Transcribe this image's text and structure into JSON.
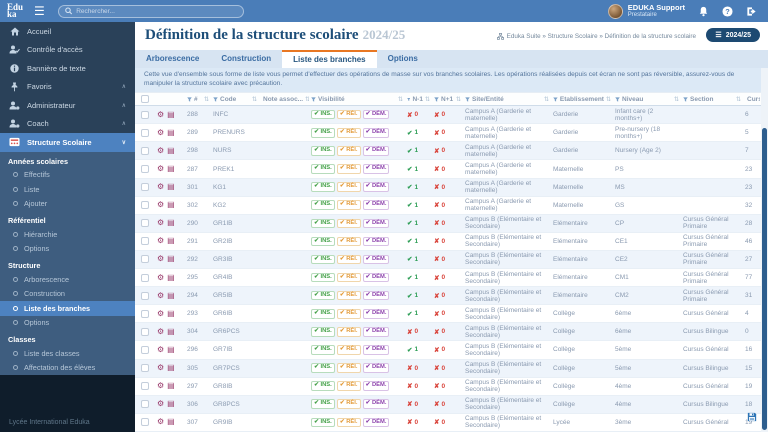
{
  "topbar": {
    "logo_line1": "Edu",
    "logo_line2": "ka",
    "search_placeholder": "Rechercher...",
    "user_name": "EDUKA Support",
    "user_role": "Prestataire"
  },
  "sidebar": {
    "items": [
      {
        "label": "Accueil",
        "icon": "home"
      },
      {
        "label": "Contrôle d'accès",
        "icon": "user-check"
      },
      {
        "label": "Bannière de texte",
        "icon": "info"
      },
      {
        "label": "Favoris",
        "icon": "pin",
        "chevron": "up"
      },
      {
        "label": "Administrateur",
        "icon": "user-admin",
        "chevron": "up"
      },
      {
        "label": "Coach",
        "icon": "user-coach",
        "chevron": "up"
      },
      {
        "label": "Structure Scolaire",
        "icon": "structure",
        "chevron": "down",
        "active": true
      }
    ],
    "sections": [
      {
        "title": "Années scolaires",
        "items": [
          "Effectifs",
          "Liste",
          "Ajouter"
        ]
      },
      {
        "title": "Référentiel",
        "items": [
          "Hiérarchie",
          "Options"
        ]
      },
      {
        "title": "Structure",
        "items": [
          "Arborescence",
          "Construction",
          "Liste des branches",
          "Options"
        ],
        "active_item": "Liste des branches"
      },
      {
        "title": "Classes",
        "items": [
          "Liste des classes",
          "Affectation des élèves"
        ]
      }
    ],
    "footer": "Lycée International Eduka"
  },
  "page": {
    "title": "Définition de la structure scolaire",
    "title_year": "2024/25",
    "breadcrumb": "Eduka Suite » Structure Scolaire » Définition de la structure scolaire",
    "year_button": "2024/25",
    "tabs": [
      "Arborescence",
      "Construction",
      "Liste des branches",
      "Options"
    ],
    "active_tab": "Liste des branches",
    "info_text": "Cette vue d'ensemble sous forme de liste vous permet d'effectuer des opérations de masse sur vos branches scolaires. Les opérations réalisées depuis cet écran ne sont pas réversible, assurez-vous de manipuler la structure scolaire avec précaution."
  },
  "table": {
    "headers": [
      "#",
      "Code",
      "Note assoc...",
      "Visibilité",
      "N-1",
      "N+1",
      "Site/Entité",
      "Etablissement",
      "Niveau",
      "Section",
      "Cursus élèves"
    ],
    "visibility_badges": [
      "INS.",
      "RÉI.",
      "DÉM."
    ],
    "rows": [
      {
        "id": "288",
        "code": "INFC",
        "note": "",
        "n1": "0",
        "n1_ok": false,
        "n2": "0",
        "n2_ok": false,
        "site": "Campus A (Garderie et maternelle)",
        "etablissement": "Garderie",
        "niveau": "Infant care (2 months+)",
        "section": "",
        "cursus": "6"
      },
      {
        "id": "289",
        "code": "PRENURS",
        "note": "",
        "n1": "1",
        "n1_ok": true,
        "n2": "0",
        "n2_ok": false,
        "site": "Campus A (Garderie et maternelle)",
        "etablissement": "Garderie",
        "niveau": "Pre-nursery (18 months+)",
        "section": "",
        "cursus": "5"
      },
      {
        "id": "298",
        "code": "NURS",
        "note": "",
        "n1": "1",
        "n1_ok": true,
        "n2": "0",
        "n2_ok": false,
        "site": "Campus A (Garderie et maternelle)",
        "etablissement": "Garderie",
        "niveau": "Nursery (Age 2)",
        "section": "",
        "cursus": "7"
      },
      {
        "id": "287",
        "code": "PREK1",
        "note": "",
        "n1": "1",
        "n1_ok": true,
        "n2": "0",
        "n2_ok": false,
        "site": "Campus A (Garderie et maternelle)",
        "etablissement": "Maternelle",
        "niveau": "PS",
        "section": "",
        "cursus": "23"
      },
      {
        "id": "301",
        "code": "KG1",
        "note": "",
        "n1": "1",
        "n1_ok": true,
        "n2": "0",
        "n2_ok": false,
        "site": "Campus A (Garderie et maternelle)",
        "etablissement": "Maternelle",
        "niveau": "MS",
        "section": "",
        "cursus": "23"
      },
      {
        "id": "302",
        "code": "KG2",
        "note": "",
        "n1": "1",
        "n1_ok": true,
        "n2": "0",
        "n2_ok": false,
        "site": "Campus A (Garderie et maternelle)",
        "etablissement": "Maternelle",
        "niveau": "GS",
        "section": "",
        "cursus": "32"
      },
      {
        "id": "290",
        "code": "GR1IB",
        "note": "",
        "n1": "1",
        "n1_ok": true,
        "n2": "0",
        "n2_ok": false,
        "site": "Campus B (Elémentaire et Secondaire)",
        "etablissement": "Elémentaire",
        "niveau": "CP",
        "section": "Cursus Général Primaire",
        "cursus": "28"
      },
      {
        "id": "291",
        "code": "GR2IB",
        "note": "",
        "n1": "1",
        "n1_ok": true,
        "n2": "0",
        "n2_ok": false,
        "site": "Campus B (Elémentaire et Secondaire)",
        "etablissement": "Elémentaire",
        "niveau": "CE1",
        "section": "Cursus Général Primaire",
        "cursus": "46"
      },
      {
        "id": "292",
        "code": "GR3IB",
        "note": "",
        "n1": "1",
        "n1_ok": true,
        "n2": "0",
        "n2_ok": false,
        "site": "Campus B (Elémentaire et Secondaire)",
        "etablissement": "Elémentaire",
        "niveau": "CE2",
        "section": "Cursus Général Primaire",
        "cursus": "27"
      },
      {
        "id": "295",
        "code": "GR4IB",
        "note": "",
        "n1": "1",
        "n1_ok": true,
        "n2": "0",
        "n2_ok": false,
        "site": "Campus B (Elémentaire et Secondaire)",
        "etablissement": "Elémentaire",
        "niveau": "CM1",
        "section": "Cursus Général Primaire",
        "cursus": "77"
      },
      {
        "id": "294",
        "code": "GR5IB",
        "note": "",
        "n1": "1",
        "n1_ok": true,
        "n2": "0",
        "n2_ok": false,
        "site": "Campus B (Elémentaire et Secondaire)",
        "etablissement": "Elémentaire",
        "niveau": "CM2",
        "section": "Cursus Général Primaire",
        "cursus": "31"
      },
      {
        "id": "293",
        "code": "GR6IB",
        "note": "",
        "n1": "1",
        "n1_ok": true,
        "n2": "0",
        "n2_ok": false,
        "site": "Campus B (Elémentaire et Secondaire)",
        "etablissement": "Collège",
        "niveau": "6ème",
        "section": "Cursus Général",
        "cursus": "4"
      },
      {
        "id": "304",
        "code": "GR6PCS",
        "note": "",
        "n1": "0",
        "n1_ok": false,
        "n2": "0",
        "n2_ok": false,
        "site": "Campus B (Elémentaire et Secondaire)",
        "etablissement": "Collège",
        "niveau": "6ème",
        "section": "Cursus Bilingue",
        "cursus": "0"
      },
      {
        "id": "296",
        "code": "GR7IB",
        "note": "",
        "n1": "1",
        "n1_ok": true,
        "n2": "0",
        "n2_ok": false,
        "site": "Campus B (Elémentaire et Secondaire)",
        "etablissement": "Collège",
        "niveau": "5ème",
        "section": "Cursus Général",
        "cursus": "16"
      },
      {
        "id": "305",
        "code": "GR7PCS",
        "note": "",
        "n1": "0",
        "n1_ok": false,
        "n2": "0",
        "n2_ok": false,
        "site": "Campus B (Elémentaire et Secondaire)",
        "etablissement": "Collège",
        "niveau": "5ème",
        "section": "Cursus Bilingue",
        "cursus": "15"
      },
      {
        "id": "297",
        "code": "GR8IB",
        "note": "",
        "n1": "0",
        "n1_ok": false,
        "n2": "0",
        "n2_ok": false,
        "site": "Campus B (Elémentaire et Secondaire)",
        "etablissement": "Collège",
        "niveau": "4ème",
        "section": "Cursus Général",
        "cursus": "19"
      },
      {
        "id": "306",
        "code": "GR8PCS",
        "note": "",
        "n1": "0",
        "n1_ok": false,
        "n2": "0",
        "n2_ok": false,
        "site": "Campus B (Elémentaire et Secondaire)",
        "etablissement": "Collège",
        "niveau": "4ème",
        "section": "Cursus Bilingue",
        "cursus": "18"
      },
      {
        "id": "307",
        "code": "GR9IB",
        "note": "",
        "n1": "0",
        "n1_ok": false,
        "n2": "0",
        "n2_ok": false,
        "site": "Campus B (Elémentaire et Secondaire)",
        "etablissement": "Lycée",
        "niveau": "3ème",
        "section": "Cursus Général",
        "cursus": "19"
      }
    ]
  },
  "colors": {
    "topbar_blue": "#4a7db8",
    "sidebar_dark": "#2a4159",
    "sidebar_submenu": "#3e5d7f",
    "active_blue": "#4d82c0",
    "accent_orange": "#e87722",
    "year_button_navy": "#1d4a72",
    "badge_green": "#43a047",
    "badge_orange": "#e39b3a",
    "badge_purple": "#8e44ad",
    "status_green": "#2f9e57",
    "status_red": "#d9453c",
    "row_alt_blue": "#eef4fb"
  }
}
